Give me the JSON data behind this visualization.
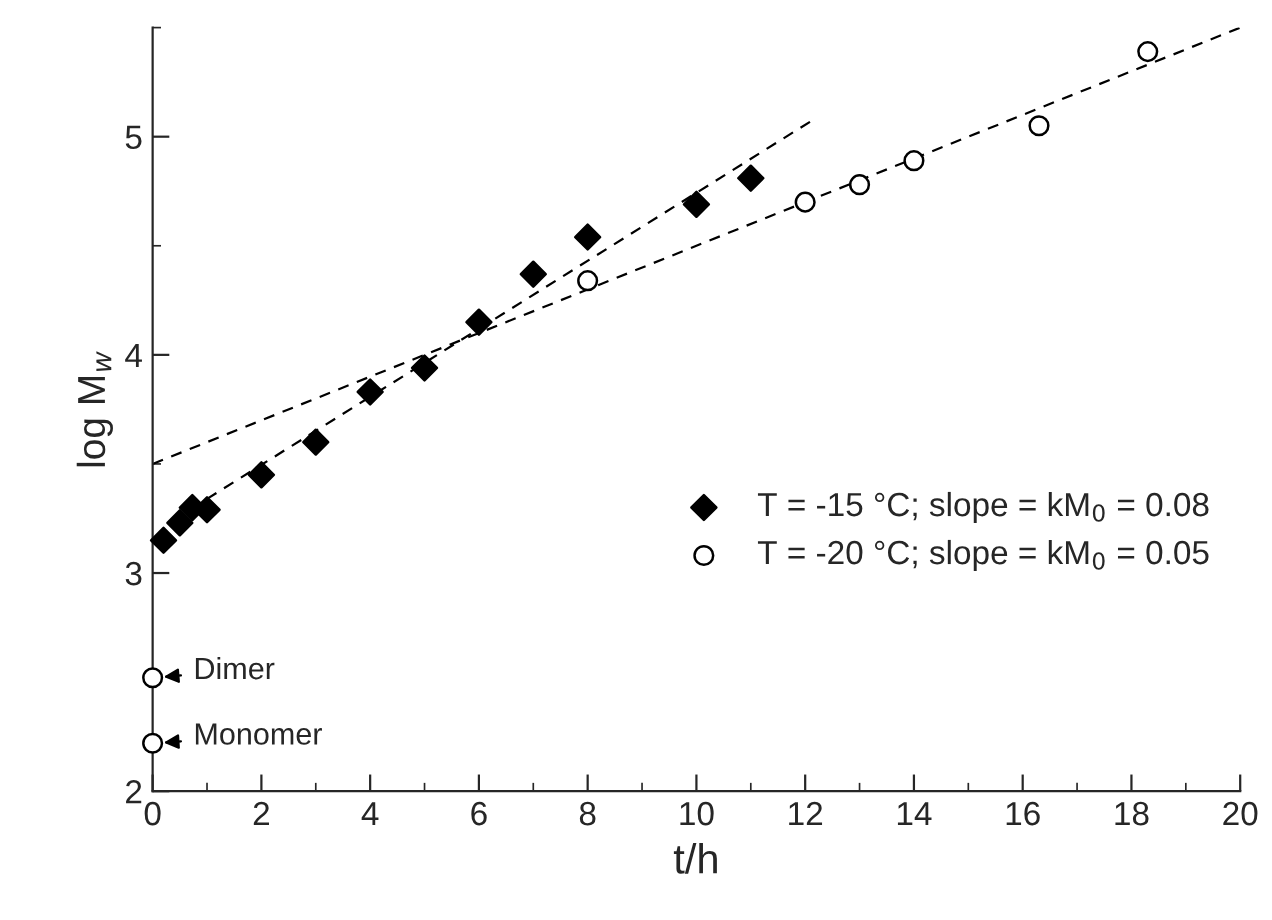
{
  "chart_data": {
    "type": "scatter",
    "xlabel": "t/h",
    "ylabel": "log M$_{w}$",
    "xlim": [
      0,
      20
    ],
    "xticks": [
      0,
      2,
      4,
      6,
      8,
      10,
      12,
      14,
      16,
      18,
      20
    ],
    "ylim": [
      2,
      5.5
    ],
    "yticks": [
      2,
      3,
      4,
      5
    ],
    "grid": false,
    "legend": "right",
    "series": [
      {
        "name": "T = -15 °C; slope = kM$_{0}$ = 0.08",
        "color": "#000000",
        "marker": "diamond",
        "x": [
          0.2,
          0.5,
          0.73,
          1,
          2,
          3,
          4,
          5,
          6,
          7,
          8,
          10,
          11
        ],
        "values": [
          3.15,
          3.23,
          3.3,
          3.29,
          3.45,
          3.6,
          3.83,
          3.94,
          4.15,
          4.37,
          4.54,
          4.69,
          4.81
        ]
      },
      {
        "name": "T = -20 °C; slope = kM$_{0}$ = 0.05",
        "color": "#000000",
        "marker": "circle",
        "x": [
          8,
          12,
          13,
          14,
          16.3,
          18.3
        ],
        "values": [
          4.34,
          4.7,
          4.78,
          4.89,
          5.05,
          5.39
        ]
      },
      {
        "type": "scatter",
        "color": "#000000",
        "marker": "circle",
        "x": [
          0,
          0
        ],
        "values": [
          2.52,
          2.22
        ]
      },
      {
        "type": "line",
        "color": "#000000",
        "line_style": "dashed",
        "x": [
          1,
          12.1
        ],
        "values": [
          3.34,
          5.07
        ]
      },
      {
        "type": "line",
        "color": "#000000",
        "line_style": "dashed",
        "x": [
          0,
          20
        ],
        "values": [
          3.5,
          5.5
        ]
      }
    ],
    "annotations": [
      {
        "text": "Dimer",
        "x": 0,
        "y": 2.52
      },
      {
        "text": "Monomer",
        "x": 0,
        "y": 2.22
      }
    ]
  }
}
